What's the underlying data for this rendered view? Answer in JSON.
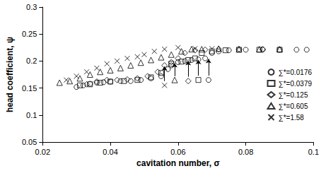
{
  "chart_data": {
    "type": "scatter",
    "x_label": "cavitation number, σ",
    "y_label": "head coefficient, ψ",
    "xlim": [
      0.02,
      0.1
    ],
    "xticks": [
      0.02,
      0.04,
      0.06,
      0.08,
      0.1
    ],
    "ylim": [
      0.05,
      0.3
    ],
    "yticks": [
      0.05,
      0.1,
      0.15,
      0.2,
      0.25,
      0.3
    ],
    "grid": false,
    "legend": "right",
    "series": [
      {
        "name": "∑*=0.0176",
        "color": "#000000",
        "marker": "circle",
        "x": [
          0.03,
          0.032,
          0.034,
          0.036,
          0.038,
          0.04,
          0.043,
          0.046,
          0.049,
          0.052,
          0.055,
          0.057,
          0.058,
          0.06,
          0.062,
          0.064,
          0.066,
          0.068,
          0.07,
          0.072,
          0.075,
          0.08,
          0.085,
          0.09,
          0.095,
          0.098,
          0.069
        ],
        "values": [
          0.152,
          0.155,
          0.158,
          0.16,
          0.161,
          0.162,
          0.163,
          0.163,
          0.165,
          0.168,
          0.172,
          0.185,
          0.192,
          0.198,
          0.2,
          0.202,
          0.203,
          0.205,
          0.215,
          0.218,
          0.22,
          0.221,
          0.221,
          0.221,
          0.221,
          0.221,
          0.165
        ]
      },
      {
        "name": "∑*=0.0379",
        "color": "#000000",
        "marker": "square",
        "x": [
          0.031,
          0.034,
          0.037,
          0.04,
          0.044,
          0.048,
          0.052,
          0.055,
          0.058,
          0.061,
          0.063,
          0.065,
          0.067,
          0.07,
          0.074,
          0.078,
          0.084,
          0.09,
          0.066
        ],
        "values": [
          0.155,
          0.157,
          0.16,
          0.162,
          0.163,
          0.165,
          0.17,
          0.178,
          0.195,
          0.199,
          0.202,
          0.205,
          0.215,
          0.218,
          0.22,
          0.221,
          0.221,
          0.221,
          0.165
        ]
      },
      {
        "name": "∑*=0.125",
        "color": "#000000",
        "marker": "diamond",
        "x": [
          0.033,
          0.036,
          0.039,
          0.042,
          0.045,
          0.048,
          0.051,
          0.054,
          0.056,
          0.058,
          0.06,
          0.062,
          0.065,
          0.068,
          0.072,
          0.078,
          0.085,
          0.063
        ],
        "values": [
          0.157,
          0.162,
          0.165,
          0.165,
          0.166,
          0.168,
          0.172,
          0.18,
          0.192,
          0.198,
          0.205,
          0.215,
          0.22,
          0.221,
          0.222,
          0.222,
          0.222,
          0.163
        ]
      },
      {
        "name": "∑*=0.605",
        "color": "#000000",
        "marker": "triangle",
        "x": [
          0.025,
          0.028,
          0.031,
          0.034,
          0.037,
          0.04,
          0.043,
          0.046,
          0.049,
          0.052,
          0.055,
          0.058,
          0.061,
          0.064,
          0.067,
          0.072,
          0.078,
          0.084,
          0.09,
          0.059
        ],
        "values": [
          0.16,
          0.163,
          0.168,
          0.175,
          0.18,
          0.183,
          0.187,
          0.192,
          0.197,
          0.202,
          0.207,
          0.212,
          0.218,
          0.222,
          0.222,
          0.223,
          0.222,
          0.222,
          0.222,
          0.165
        ]
      },
      {
        "name": "∑*=1.58",
        "color": "#000000",
        "marker": "x",
        "x": [
          0.027,
          0.03,
          0.033,
          0.036,
          0.039,
          0.042,
          0.045,
          0.048,
          0.05,
          0.053,
          0.056,
          0.06,
          0.065,
          0.07,
          0.056
        ],
        "values": [
          0.165,
          0.172,
          0.18,
          0.187,
          0.195,
          0.2,
          0.205,
          0.208,
          0.212,
          0.218,
          0.222,
          0.225,
          0.223,
          0.223,
          0.155
        ]
      }
    ],
    "arrows": [
      {
        "x": 0.056,
        "y_from": 0.163,
        "y_to": 0.19
      },
      {
        "x": 0.059,
        "y_from": 0.172,
        "y_to": 0.196
      },
      {
        "x": 0.063,
        "y_from": 0.171,
        "y_to": 0.2
      },
      {
        "x": 0.066,
        "y_from": 0.173,
        "y_to": 0.202
      },
      {
        "x": 0.069,
        "y_from": 0.173,
        "y_to": 0.204
      }
    ]
  }
}
